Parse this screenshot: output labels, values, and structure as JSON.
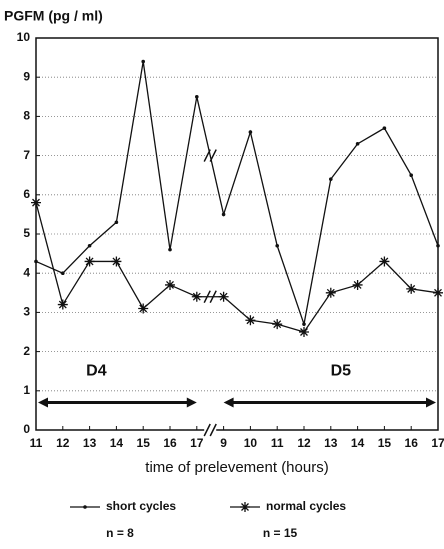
{
  "chart_data": {
    "type": "line",
    "y_label": "PGFM (pg / ml)",
    "x_label": "time of prelevement (hours)",
    "categories": [
      "11",
      "12",
      "13",
      "14",
      "15",
      "16",
      "17",
      "9",
      "10",
      "11",
      "12",
      "13",
      "14",
      "15",
      "16",
      "17"
    ],
    "series": [
      {
        "name": "short cycles",
        "color": "#111111",
        "marker": "dot",
        "sample": "n = 8",
        "values": [
          4.3,
          4.0,
          4.7,
          5.3,
          9.4,
          4.6,
          8.5,
          5.5,
          7.6,
          4.7,
          2.7,
          6.4,
          7.3,
          7.7,
          6.5,
          4.7
        ]
      },
      {
        "name": "normal cycles",
        "color": "#111111",
        "marker": "star",
        "sample": "n = 15",
        "values": [
          5.8,
          3.2,
          4.3,
          4.3,
          3.1,
          3.7,
          3.4,
          3.4,
          2.8,
          2.7,
          2.5,
          3.5,
          3.7,
          4.3,
          3.6,
          3.5
        ]
      }
    ],
    "annotations": [
      "D4",
      "D5"
    ],
    "ylim": [
      0,
      10
    ],
    "yticks": [
      0,
      1,
      2,
      3,
      4,
      5,
      6,
      7,
      8,
      9,
      10
    ],
    "grid": true
  }
}
